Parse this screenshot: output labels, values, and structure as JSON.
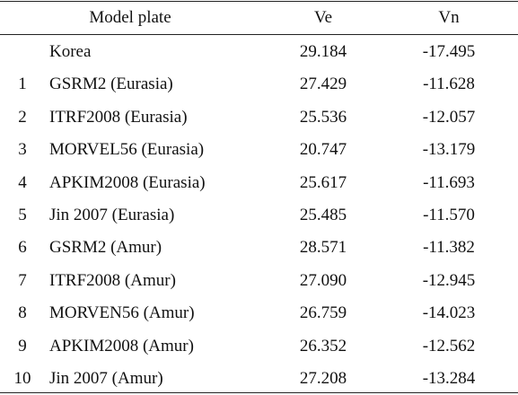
{
  "table": {
    "columns": [
      "Model plate",
      "Ve",
      "Vn"
    ],
    "rows": [
      {
        "name": "Korea",
        "ve": "29.184",
        "vn": "-17.495"
      },
      {
        "no": "1",
        "name": "GSRM2 (Eurasia)",
        "ve": "27.429",
        "vn": "-11.628"
      },
      {
        "no": "2",
        "name": "ITRF2008 (Eurasia)",
        "ve": "25.536",
        "vn": "-12.057"
      },
      {
        "no": "3",
        "name": "MORVEL56 (Eurasia)",
        "ve": "20.747",
        "vn": "-13.179"
      },
      {
        "no": "4",
        "name": "APKIM2008 (Eurasia)",
        "ve": "25.617",
        "vn": "-11.693"
      },
      {
        "no": "5",
        "name": "Jin 2007 (Eurasia)",
        "ve": "25.485",
        "vn": "-11.570"
      },
      {
        "no": "6",
        "name": "GSRM2 (Amur)",
        "ve": "28.571",
        "vn": "-11.382"
      },
      {
        "no": "7",
        "name": "ITRF2008 (Amur)",
        "ve": "27.090",
        "vn": "-12.945"
      },
      {
        "no": "8",
        "name": "MORVEN56 (Amur)",
        "ve": "26.759",
        "vn": "-14.023"
      },
      {
        "no": "9",
        "name": "APKIM2008 (Amur)",
        "ve": "26.352",
        "vn": "-12.562"
      },
      {
        "no": "10",
        "name": "Jin 2007 (Amur)",
        "ve": "27.208",
        "vn": "-13.284"
      }
    ]
  }
}
